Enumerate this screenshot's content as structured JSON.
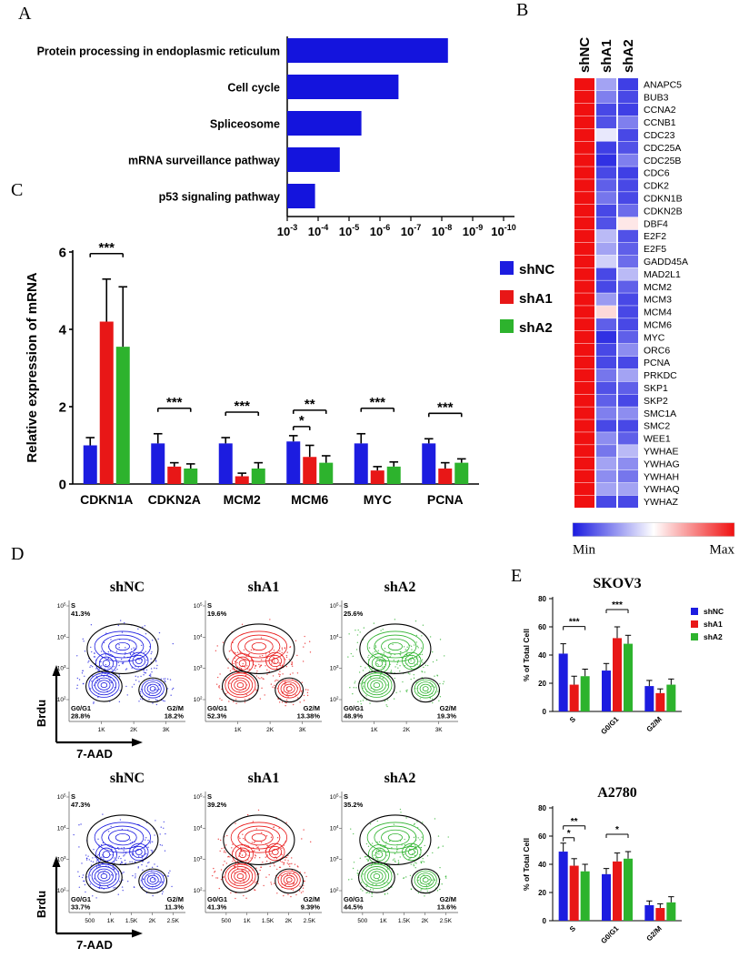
{
  "panel_labels": [
    "A",
    "B",
    "C",
    "D",
    "E"
  ],
  "colors": {
    "shNC": "#1c1ce0",
    "shA1": "#e81717",
    "shA2": "#2db32d",
    "pathway_bar": "#1414dd",
    "heat_low": "#1a1ae0",
    "heat_high": "#f01010"
  },
  "chart_data": [
    {
      "id": "pathway_enrichment",
      "panel": "A",
      "type": "bar",
      "orientation": "horizontal",
      "categories": [
        "Protein processing in endoplasmic reticulum",
        "Cell cycle",
        "Spliceosome",
        "mRNA surveillance pathway",
        "p53 signaling pathway"
      ],
      "values_pvalue_exponent": [
        -8.2,
        -6.6,
        -5.4,
        -4.7,
        -3.9
      ],
      "x_axis_tick_base": "10",
      "x_axis_tick_exponents": [
        -3,
        -4,
        -5,
        -6,
        -7,
        -8,
        -9,
        -10
      ]
    },
    {
      "id": "gene_heatmap",
      "panel": "B",
      "type": "heatmap",
      "columns": [
        "shNC",
        "shA1",
        "shA2"
      ],
      "value_scale": {
        "min": 0,
        "max": 1
      },
      "rows": [
        {
          "gene": "ANAPC5",
          "values": [
            1,
            0.3,
            0.08
          ]
        },
        {
          "gene": "BUB3",
          "values": [
            1,
            0.22,
            0.1
          ]
        },
        {
          "gene": "CCNA2",
          "values": [
            1,
            0.1,
            0.08
          ]
        },
        {
          "gene": "CCNB1",
          "values": [
            1,
            0.12,
            0.22
          ]
        },
        {
          "gene": "CDC23",
          "values": [
            1,
            0.45,
            0.1
          ]
        },
        {
          "gene": "CDC25A",
          "values": [
            1,
            0.08,
            0.12
          ]
        },
        {
          "gene": "CDC25B",
          "values": [
            1,
            0.05,
            0.22
          ]
        },
        {
          "gene": "CDC6",
          "values": [
            1,
            0.1,
            0.08
          ]
        },
        {
          "gene": "CDK2",
          "values": [
            1,
            0.15,
            0.1
          ]
        },
        {
          "gene": "CDKN1B",
          "values": [
            1,
            0.2,
            0.1
          ]
        },
        {
          "gene": "CDKN2B",
          "values": [
            1,
            0.1,
            0.18
          ]
        },
        {
          "gene": "DBF4",
          "values": [
            1,
            0.12,
            0.55
          ]
        },
        {
          "gene": "E2F2",
          "values": [
            1,
            0.35,
            0.12
          ]
        },
        {
          "gene": "E2F5",
          "values": [
            1,
            0.3,
            0.15
          ]
        },
        {
          "gene": "GADD45A",
          "values": [
            1,
            0.4,
            0.18
          ]
        },
        {
          "gene": "MAD2L1",
          "values": [
            1,
            0.1,
            0.35
          ]
        },
        {
          "gene": "MCM2",
          "values": [
            1,
            0.1,
            0.15
          ]
        },
        {
          "gene": "MCM3",
          "values": [
            1,
            0.28,
            0.1
          ]
        },
        {
          "gene": "MCM4",
          "values": [
            1,
            0.58,
            0.1
          ]
        },
        {
          "gene": "MCM6",
          "values": [
            1,
            0.15,
            0.1
          ]
        },
        {
          "gene": "MYC",
          "values": [
            1,
            0.05,
            0.15
          ]
        },
        {
          "gene": "ORC6",
          "values": [
            1,
            0.1,
            0.25
          ]
        },
        {
          "gene": "PCNA",
          "values": [
            1,
            0.1,
            0.1
          ]
        },
        {
          "gene": "PRKDC",
          "values": [
            1,
            0.2,
            0.3
          ]
        },
        {
          "gene": "SKP1",
          "values": [
            1,
            0.12,
            0.15
          ]
        },
        {
          "gene": "SKP2",
          "values": [
            1,
            0.15,
            0.1
          ]
        },
        {
          "gene": "SMC1A",
          "values": [
            1,
            0.22,
            0.25
          ]
        },
        {
          "gene": "SMC2",
          "values": [
            1,
            0.1,
            0.1
          ]
        },
        {
          "gene": "WEE1",
          "values": [
            1,
            0.25,
            0.15
          ]
        },
        {
          "gene": "YWHAE",
          "values": [
            1,
            0.2,
            0.35
          ]
        },
        {
          "gene": "YWHAG",
          "values": [
            1,
            0.3,
            0.25
          ]
        },
        {
          "gene": "YWHAH",
          "values": [
            1,
            0.25,
            0.2
          ]
        },
        {
          "gene": "YWHAQ",
          "values": [
            1,
            0.3,
            0.3
          ]
        },
        {
          "gene": "YWHAZ",
          "values": [
            1,
            0.1,
            0.1
          ]
        }
      ],
      "colorbar": {
        "min_label": "Min",
        "max_label": "Max"
      }
    },
    {
      "id": "mrna_expression",
      "panel": "C",
      "type": "bar",
      "ylabel": "Relative expression of mRNA",
      "categories": [
        "CDKN1A",
        "CDKN2A",
        "MCM2",
        "MCM6",
        "MYC",
        "PCNA"
      ],
      "ylim": [
        0,
        6
      ],
      "yticks": [
        0,
        2,
        4,
        6
      ],
      "series": [
        {
          "name": "shNC",
          "values": [
            1.0,
            1.05,
            1.05,
            1.1,
            1.05,
            1.05
          ],
          "errors": [
            0.2,
            0.25,
            0.15,
            0.15,
            0.25,
            0.12
          ]
        },
        {
          "name": "shA1",
          "values": [
            4.2,
            0.45,
            0.2,
            0.7,
            0.35,
            0.4
          ],
          "errors": [
            1.1,
            0.1,
            0.08,
            0.3,
            0.1,
            0.15
          ]
        },
        {
          "name": "shA2",
          "values": [
            3.55,
            0.4,
            0.4,
            0.55,
            0.45,
            0.55
          ],
          "errors": [
            1.55,
            0.12,
            0.15,
            0.18,
            0.12,
            0.1
          ]
        }
      ],
      "significance": [
        {
          "category": "CDKN1A",
          "label": "***",
          "span": [
            0,
            2
          ],
          "level": 1
        },
        {
          "category": "CDKN2A",
          "label": "***",
          "span": [
            0,
            2
          ],
          "level": 1
        },
        {
          "category": "MCM2",
          "label": "***",
          "span": [
            0,
            2
          ],
          "level": 1
        },
        {
          "category": "MCM6",
          "label": "*",
          "span": [
            0,
            1
          ],
          "level": 0
        },
        {
          "category": "MCM6",
          "label": "**",
          "span": [
            0,
            2
          ],
          "level": 1
        },
        {
          "category": "MYC",
          "label": "***",
          "span": [
            0,
            2
          ],
          "level": 1
        },
        {
          "category": "PCNA",
          "label": "***",
          "span": [
            0,
            2
          ],
          "level": 1
        }
      ],
      "legend": [
        "shNC",
        "shA1",
        "shA2"
      ]
    },
    {
      "id": "flow_cytometry",
      "panel": "D",
      "type": "scatter",
      "xlabel": "7-AAD",
      "ylabel": "Brdu",
      "gate_labels": {
        "s": "S",
        "g0g1": "G0/G1",
        "g2m": "G2/M"
      },
      "rows": [
        {
          "x_ticks": [
            "1K",
            "2K",
            "3K"
          ],
          "y_tick_exponents": [
            5,
            4,
            3,
            2
          ],
          "plots": [
            {
              "title": "shNC",
              "series_color_key": "shNC",
              "S": "41.3%",
              "G0_G1": "28.8%",
              "G2_M": "18.2%"
            },
            {
              "title": "shA1",
              "series_color_key": "shA1",
              "S": "19.6%",
              "G0_G1": "52.3%",
              "G2_M": "13.38%"
            },
            {
              "title": "shA2",
              "series_color_key": "shA2",
              "S": "25.6%",
              "G0_G1": "48.9%",
              "G2_M": "19.3%"
            }
          ]
        },
        {
          "x_ticks": [
            "500",
            "1K",
            "1.5K",
            "2K",
            "2.5K"
          ],
          "y_tick_exponents": [
            5,
            4,
            3,
            2
          ],
          "plots": [
            {
              "title": "shNC",
              "series_color_key": "shNC",
              "S": "47.3%",
              "G0_G1": "33.7%",
              "G2_M": "11.3%"
            },
            {
              "title": "shA1",
              "series_color_key": "shA1",
              "S": "39.2%",
              "G0_G1": "41.3%",
              "G2_M": "9.39%"
            },
            {
              "title": "shA2",
              "series_color_key": "shA2",
              "S": "35.2%",
              "G0_G1": "44.5%",
              "G2_M": "13.6%"
            }
          ]
        }
      ]
    },
    {
      "id": "cell_cycle_skov3",
      "panel": "E",
      "type": "bar",
      "title": "SKOV3",
      "ylabel": "% of Total Cell",
      "categories": [
        "S",
        "G0/G1",
        "G2/M"
      ],
      "ylim": [
        0,
        80
      ],
      "yticks": [
        0,
        20,
        40,
        60,
        80
      ],
      "series": [
        {
          "name": "shNC",
          "values": [
            41,
            29,
            18
          ],
          "errors": [
            7,
            5,
            4
          ]
        },
        {
          "name": "shA1",
          "values": [
            19,
            52,
            13
          ],
          "errors": [
            6,
            8,
            3
          ]
        },
        {
          "name": "shA2",
          "values": [
            25,
            48,
            19
          ],
          "errors": [
            5,
            6,
            4
          ]
        }
      ],
      "significance": [
        {
          "category": "S",
          "label": "***",
          "span": [
            0,
            2
          ],
          "level": 1
        },
        {
          "category": "G0/G1",
          "label": "***",
          "span": [
            0,
            2
          ],
          "level": 1
        }
      ],
      "legend": [
        "shNC",
        "shA1",
        "shA2"
      ]
    },
    {
      "id": "cell_cycle_a2780",
      "panel": "E",
      "type": "bar",
      "title": "A2780",
      "ylabel": "% of Total Cell",
      "categories": [
        "S",
        "G0/G1",
        "G2/M"
      ],
      "ylim": [
        0,
        80
      ],
      "yticks": [
        0,
        20,
        40,
        60,
        80
      ],
      "series": [
        {
          "name": "shNC",
          "values": [
            49,
            33,
            11
          ],
          "errors": [
            6,
            4,
            3
          ]
        },
        {
          "name": "shA1",
          "values": [
            39,
            42,
            9
          ],
          "errors": [
            5,
            6,
            3
          ]
        },
        {
          "name": "shA2",
          "values": [
            35,
            44,
            13
          ],
          "errors": [
            5,
            5,
            4
          ]
        }
      ],
      "significance": [
        {
          "category": "S",
          "label": "*",
          "span": [
            0,
            1
          ],
          "level": 0
        },
        {
          "category": "S",
          "label": "**",
          "span": [
            0,
            2
          ],
          "level": 1
        },
        {
          "category": "G0/G1",
          "label": "*",
          "span": [
            0,
            2
          ],
          "level": 1
        }
      ]
    }
  ]
}
